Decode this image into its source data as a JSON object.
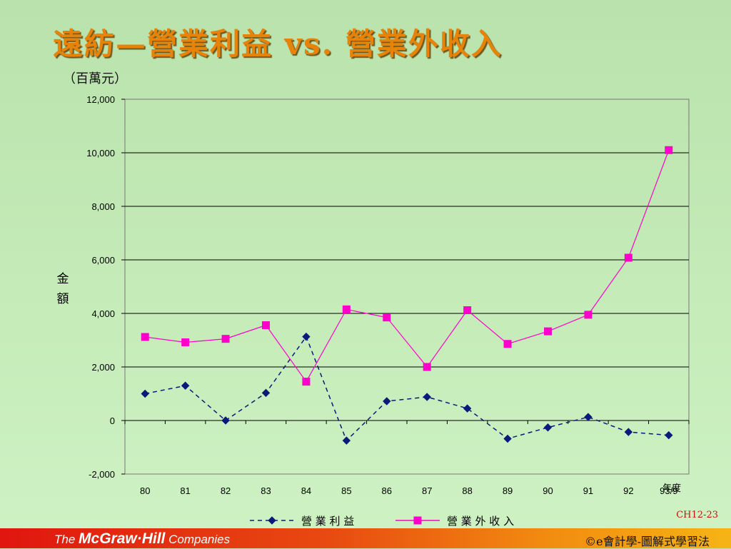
{
  "slide": {
    "title": "遠紡—營業利益 vs. 營業外收入",
    "unit_label": "（百萬元）",
    "slide_number": "CH12-23",
    "footer_brand_1": "The ",
    "footer_brand_2": "McGraw·Hill",
    "footer_brand_3": " Companies",
    "footer_course": "©e會計學-圖解式學習法"
  },
  "chart_data": {
    "type": "line",
    "title": "",
    "xlabel": "年度",
    "ylabel": "金額",
    "categories": [
      "80",
      "81",
      "82",
      "83",
      "84",
      "85",
      "86",
      "87",
      "88",
      "89",
      "90",
      "91",
      "92",
      "93/9"
    ],
    "ylim": [
      -2000,
      12000
    ],
    "yticks": [
      "12,000",
      "10,000",
      "8,000",
      "6,000",
      "4,000",
      "2,000",
      "0",
      "-2,000"
    ],
    "grid": true,
    "legend_position": "bottom",
    "series": [
      {
        "name": "營業利益",
        "color": "#0a1a7a",
        "line_style": "dashed",
        "marker": "diamond",
        "values": [
          1000,
          1300,
          0,
          1030,
          3130,
          -750,
          720,
          880,
          450,
          -680,
          -260,
          130,
          -430,
          -550
        ]
      },
      {
        "name": "營業外收入",
        "color": "#ff00cc",
        "line_style": "solid",
        "marker": "square",
        "values": [
          3120,
          2920,
          3050,
          3560,
          1450,
          4150,
          3850,
          2000,
          4120,
          2860,
          3330,
          3950,
          6080,
          10100
        ]
      }
    ]
  }
}
